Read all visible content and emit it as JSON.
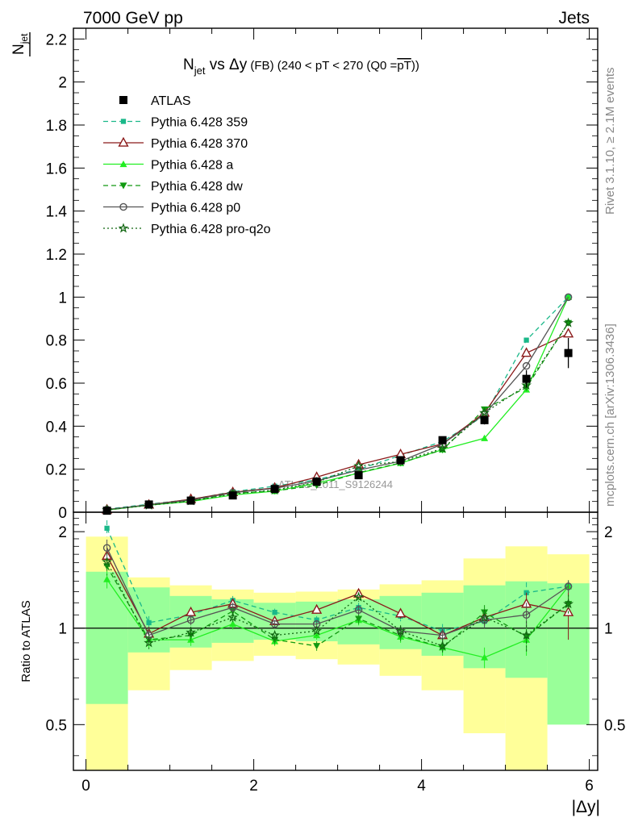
{
  "header": {
    "left": "7000 GeV pp",
    "right": "Jets"
  },
  "side_labels": {
    "rivet": "Rivet 3.1.10, ≥ 2.1M events",
    "mcplots": "mcplots.cern.ch [arXiv:1306.3436]"
  },
  "watermark": "ATLAS_2011_S9126244",
  "chart_data": {
    "type": "line",
    "title": {
      "n": "N",
      "sub": "jet",
      "vs": " vs ",
      "delta": "Δy",
      "fb": " (FB) ",
      "range": "(240 < pT < 270 (Q0 =",
      "pt_bar": "pT",
      "close": "))"
    },
    "ylabel": {
      "n": "N",
      "sub": "jet"
    },
    "ratio_ylabel": "Ratio to ATLAS",
    "xlabel": "|Δy|",
    "x": [
      0.25,
      0.75,
      1.25,
      1.75,
      2.25,
      2.75,
      3.25,
      3.75,
      4.25,
      4.75,
      5.25,
      5.75
    ],
    "xlim": [
      -0.15,
      6.1
    ],
    "ylim": [
      0,
      2.25
    ],
    "ratio_ylim": [
      0.36,
      2.3
    ],
    "x_ticks": [
      "0",
      "2",
      "4",
      "6"
    ],
    "x_tick_values": [
      0,
      2,
      4,
      6
    ],
    "y_ticks": [
      "0",
      "0.2",
      "0.4",
      "0.6",
      "0.8",
      "1",
      "1.2",
      "1.4",
      "1.6",
      "1.8",
      "2",
      "2.2"
    ],
    "y_tick_values": [
      0,
      0.2,
      0.4,
      0.6,
      0.8,
      1,
      1.2,
      1.4,
      1.6,
      1.8,
      2,
      2.2
    ],
    "ratio_y_ticks": [
      "0.5",
      "1",
      "2"
    ],
    "ratio_y_tick_values": [
      0.5,
      1,
      2
    ],
    "data": {
      "name": "ATLAS",
      "values": [
        0.007,
        0.036,
        0.054,
        0.078,
        0.108,
        0.142,
        0.172,
        0.242,
        0.335,
        0.428,
        0.62,
        0.74
      ],
      "errors": [
        0.001,
        0.002,
        0.003,
        0.004,
        0.005,
        0.007,
        0.009,
        0.012,
        0.015,
        0.02,
        0.04,
        0.07
      ]
    },
    "bands": {
      "inner_lo": [
        0.58,
        0.84,
        0.87,
        0.9,
        0.92,
        0.91,
        0.89,
        0.86,
        0.82,
        0.75,
        0.7,
        0.5
      ],
      "inner_hi": [
        1.5,
        1.34,
        1.26,
        1.23,
        1.2,
        1.21,
        1.23,
        1.26,
        1.29,
        1.36,
        1.4,
        1.38
      ],
      "outer_lo": [
        0.1,
        0.64,
        0.74,
        0.79,
        0.82,
        0.8,
        0.77,
        0.71,
        0.64,
        0.47,
        0.22,
        0.73
      ],
      "outer_hi": [
        1.93,
        1.44,
        1.36,
        1.32,
        1.29,
        1.3,
        1.32,
        1.37,
        1.41,
        1.65,
        1.8,
        1.7
      ]
    },
    "series": [
      {
        "name": "Pythia 6.428 359",
        "color": "#1ab889",
        "dash": "6,4",
        "marker": "square",
        "values": [
          0.0143,
          0.0374,
          0.0594,
          0.0952,
          0.121,
          0.151,
          0.199,
          0.264,
          0.329,
          0.449,
          0.8,
          1.0
        ],
        "ratio": [
          2.05,
          1.04,
          1.1,
          1.22,
          1.12,
          1.06,
          1.16,
          1.09,
          0.98,
          1.05,
          1.29,
          1.35
        ],
        "ratio_err": [
          0.12,
          0.05,
          0.04,
          0.04,
          0.03,
          0.03,
          0.04,
          0.04,
          0.05,
          0.06,
          0.1,
          0.06
        ]
      },
      {
        "name": "Pythia 6.428 370",
        "color": "#8b1a1a",
        "dash": "",
        "marker": "tri-open",
        "values": [
          0.0118,
          0.0346,
          0.0605,
          0.0928,
          0.113,
          0.163,
          0.221,
          0.269,
          0.318,
          0.462,
          0.74,
          0.83
        ],
        "ratio": [
          1.68,
          0.96,
          1.12,
          1.19,
          1.05,
          1.14,
          1.28,
          1.11,
          0.95,
          1.08,
          1.19,
          1.12
        ],
        "ratio_err": [
          0.1,
          0.05,
          0.04,
          0.04,
          0.03,
          0.03,
          0.04,
          0.04,
          0.05,
          0.06,
          0.1,
          0.2
        ]
      },
      {
        "name": "Pythia 6.428 a",
        "color": "#22ee22",
        "dash": "",
        "marker": "tri",
        "values": [
          0.0099,
          0.0331,
          0.0497,
          0.0803,
          0.0978,
          0.135,
          0.182,
          0.228,
          0.291,
          0.344,
          0.57,
          1.0
        ],
        "ratio": [
          1.42,
          0.92,
          0.92,
          1.03,
          0.91,
          0.95,
          1.06,
          0.94,
          0.87,
          0.81,
          0.92,
          1.35
        ],
        "ratio_err": [
          0.09,
          0.05,
          0.04,
          0.04,
          0.03,
          0.03,
          0.04,
          0.04,
          0.05,
          0.06,
          0.1,
          0.06
        ]
      },
      {
        "name": "Pythia 6.428 dw",
        "color": "#119911",
        "dash": "6,4",
        "marker": "tri-down",
        "values": [
          0.0109,
          0.0331,
          0.0514,
          0.0881,
          0.0989,
          0.125,
          0.184,
          0.229,
          0.29,
          0.478,
          0.58,
          0.88
        ],
        "ratio": [
          1.56,
          0.92,
          0.95,
          1.13,
          0.92,
          0.88,
          1.07,
          0.95,
          0.87,
          1.12,
          0.94,
          1.19
        ],
        "ratio_err": [
          0.1,
          0.05,
          0.04,
          0.04,
          0.03,
          0.03,
          0.04,
          0.04,
          0.05,
          0.06,
          0.1,
          0.08
        ]
      },
      {
        "name": "Pythia 6.428 p0",
        "color": "#555555",
        "dash": "",
        "marker": "circle-open",
        "values": [
          0.0125,
          0.0342,
          0.0572,
          0.0904,
          0.111,
          0.146,
          0.196,
          0.237,
          0.317,
          0.455,
          0.68,
          1.0
        ],
        "ratio": [
          1.78,
          0.95,
          1.06,
          1.16,
          1.03,
          1.03,
          1.14,
          0.98,
          0.95,
          1.06,
          1.1,
          1.35
        ],
        "ratio_err": [
          0.11,
          0.05,
          0.04,
          0.04,
          0.03,
          0.03,
          0.04,
          0.04,
          0.05,
          0.06,
          0.1,
          0.06
        ]
      },
      {
        "name": "Pythia 6.428 pro-q2o",
        "color": "#116611",
        "dash": "2,3",
        "marker": "star",
        "values": [
          0.0113,
          0.0324,
          0.0524,
          0.0842,
          0.103,
          0.139,
          0.215,
          0.236,
          0.296,
          0.462,
          0.59,
          0.88
        ],
        "ratio": [
          1.61,
          0.9,
          0.97,
          1.08,
          0.95,
          0.98,
          1.25,
          0.98,
          0.88,
          1.08,
          0.95,
          1.19
        ],
        "ratio_err": [
          0.1,
          0.05,
          0.04,
          0.04,
          0.03,
          0.03,
          0.04,
          0.04,
          0.05,
          0.06,
          0.1,
          0.08
        ]
      }
    ]
  }
}
